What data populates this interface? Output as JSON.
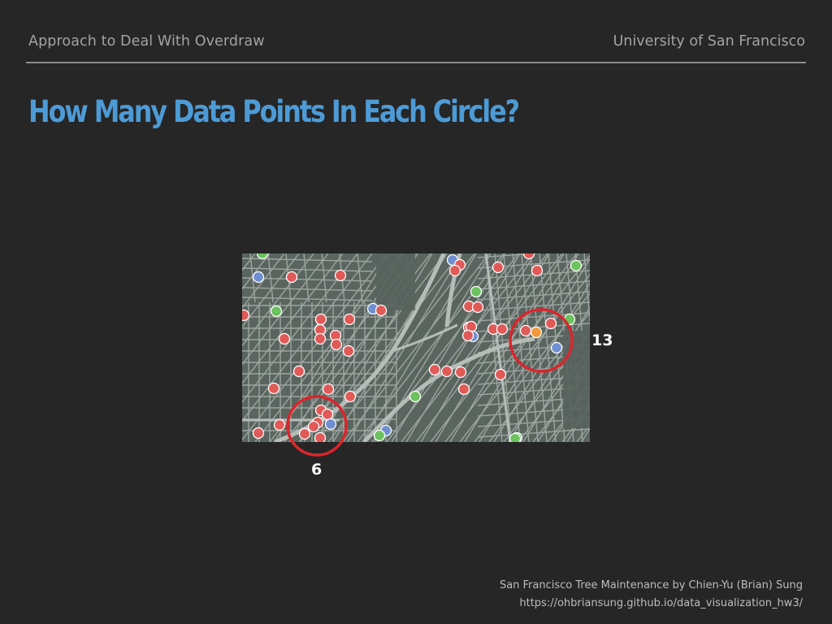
{
  "header": {
    "section": "Approach to Deal With Overdraw",
    "institution": "University of San Francisco"
  },
  "slide": {
    "title": "How Many Data Points In Each Circle?"
  },
  "figure": {
    "left_circle_count": "6",
    "right_circle_count": "13",
    "highlight_color": "#d9262b",
    "map_background": "#5a6560",
    "street_color": "#a5aca8",
    "point_colors": {
      "red": "#e05a58",
      "blue": "#6f8fd2",
      "green": "#6cc25e",
      "orange": "#f2973a"
    }
  },
  "credits": {
    "line1": "San Francisco Tree Maintenance by Chien-Yu (Brian) Sung",
    "line2": "https://ohbriansung.github.io/data_visualization_hw3/"
  }
}
